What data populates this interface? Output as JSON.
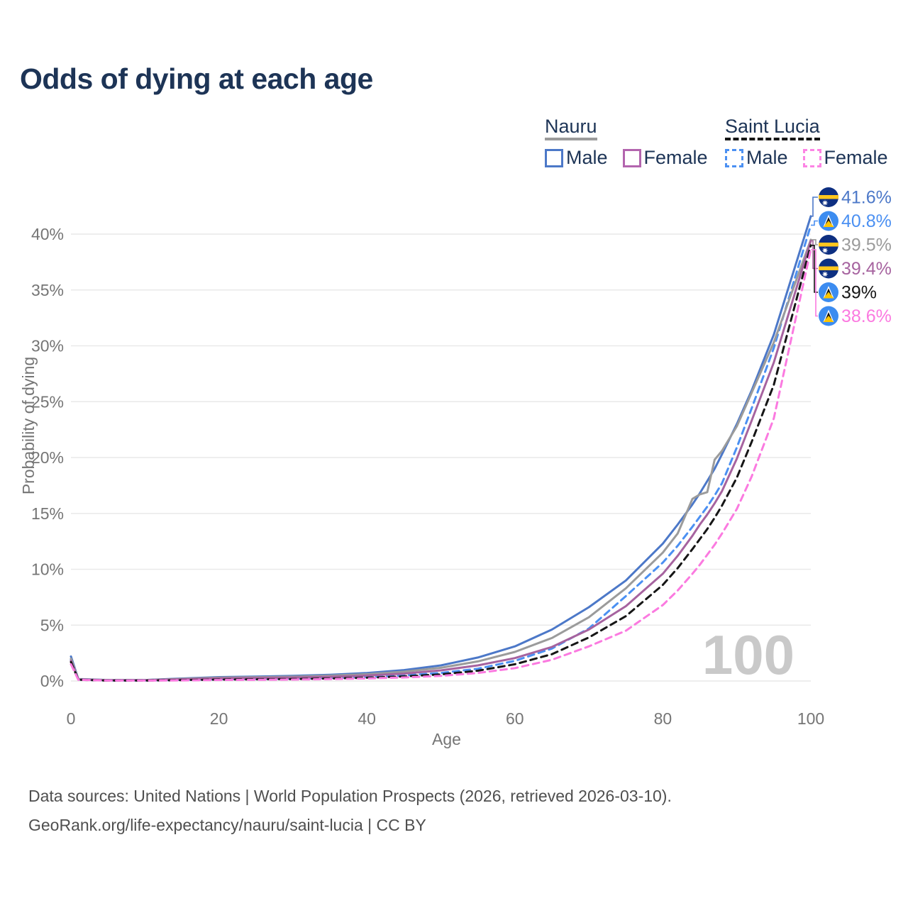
{
  "title": "Odds of dying at each age",
  "watermark": "100",
  "legend": {
    "groups": [
      {
        "country": "Nauru",
        "line_style": "solid",
        "line_color": "#9b9b9b",
        "items": [
          {
            "label": "Male",
            "swatch_color": "#4c78c8",
            "swatch_style": "solid"
          },
          {
            "label": "Female",
            "swatch_color": "#b365ae",
            "swatch_style": "solid"
          }
        ]
      },
      {
        "country": "Saint Lucia",
        "line_style": "dashed",
        "line_color": "#161616",
        "items": [
          {
            "label": "Male",
            "swatch_color": "#4b90f2",
            "swatch_style": "dashed"
          },
          {
            "label": "Female",
            "swatch_color": "#fc84e4",
            "swatch_style": "dashed"
          }
        ]
      }
    ]
  },
  "footer": {
    "line1": "Data sources: United Nations | World Population Prospects (2026, retrieved 2026-03-10).",
    "line2": "GeoRank.org/life-expectancy/nauru/saint-lucia | CC BY"
  },
  "chart_data": {
    "type": "line",
    "title": "Odds of dying at each age",
    "xlabel": "Age",
    "ylabel": "Probability of dying",
    "xlim": [
      0,
      100
    ],
    "ylim": [
      0,
      43
    ],
    "grid": true,
    "legend_position": "top-right",
    "x_ticks": {
      "values": [
        0,
        20,
        40,
        60,
        80,
        100
      ],
      "labels": [
        "0",
        "20",
        "40",
        "60",
        "80",
        "100"
      ]
    },
    "y_ticks": {
      "values": [
        0,
        5,
        10,
        15,
        20,
        25,
        30,
        35,
        40
      ],
      "labels": [
        "0%",
        "5%",
        "10%",
        "15%",
        "20%",
        "25%",
        "30%",
        "35%",
        "40%"
      ]
    },
    "x": [
      0,
      1,
      5,
      10,
      15,
      20,
      25,
      30,
      35,
      40,
      45,
      50,
      55,
      60,
      65,
      70,
      75,
      80,
      82,
      84,
      85,
      86,
      87,
      88,
      90,
      92,
      95,
      100
    ],
    "series": [
      {
        "name": "Nauru Male",
        "country": "Nauru",
        "sex": "Male",
        "color": "#4c78c8",
        "dash": "solid",
        "flag": "nauru",
        "end_label": "41.6%",
        "values": [
          2.2,
          0.18,
          0.09,
          0.09,
          0.22,
          0.35,
          0.4,
          0.46,
          0.56,
          0.72,
          0.98,
          1.4,
          2.1,
          3.1,
          4.6,
          6.6,
          9.0,
          12.3,
          14.0,
          15.8,
          16.8,
          17.9,
          19.0,
          20.3,
          23.0,
          26.0,
          31.0,
          41.6
        ]
      },
      {
        "name": "Saint Lucia Male",
        "country": "Saint Lucia",
        "sex": "Male",
        "color": "#4b90f2",
        "dash": "dashed",
        "flag": "saint-lucia",
        "end_label": "40.8%",
        "values": [
          1.9,
          0.13,
          0.05,
          0.05,
          0.1,
          0.16,
          0.18,
          0.21,
          0.27,
          0.36,
          0.5,
          0.72,
          1.1,
          1.8,
          2.9,
          4.7,
          7.6,
          10.6,
          12.1,
          13.8,
          14.7,
          15.6,
          16.6,
          17.7,
          20.9,
          24.4,
          29.8,
          40.8
        ]
      },
      {
        "name": "Nauru Total",
        "country": "Nauru",
        "sex": "Both",
        "color": "#9b9b9b",
        "dash": "solid",
        "flag": "nauru",
        "end_label": "39.5%",
        "values": [
          2.0,
          0.16,
          0.08,
          0.08,
          0.19,
          0.3,
          0.34,
          0.39,
          0.48,
          0.61,
          0.83,
          1.18,
          1.75,
          2.6,
          3.85,
          5.7,
          8.3,
          11.5,
          13.2,
          16.3,
          16.7,
          16.9,
          19.8,
          20.6,
          22.8,
          25.8,
          30.3,
          39.5
        ]
      },
      {
        "name": "Nauru Female",
        "country": "Nauru",
        "sex": "Female",
        "color": "#a6639f",
        "dash": "solid",
        "flag": "nauru",
        "end_label": "39.4%",
        "values": [
          1.8,
          0.14,
          0.07,
          0.07,
          0.15,
          0.24,
          0.27,
          0.31,
          0.38,
          0.49,
          0.66,
          0.95,
          1.4,
          2.05,
          3.05,
          4.6,
          6.7,
          9.6,
          11.2,
          13.0,
          14.0,
          14.9,
          15.9,
          17.0,
          19.9,
          23.3,
          28.5,
          39.4
        ]
      },
      {
        "name": "Saint Lucia Total",
        "country": "Saint Lucia",
        "sex": "Both",
        "color": "#161616",
        "dash": "dashed",
        "flag": "saint-lucia",
        "end_label": "39%",
        "values": [
          1.7,
          0.11,
          0.04,
          0.04,
          0.08,
          0.13,
          0.15,
          0.17,
          0.22,
          0.29,
          0.41,
          0.59,
          0.92,
          1.5,
          2.4,
          3.9,
          5.8,
          8.6,
          10.1,
          11.8,
          12.7,
          13.6,
          14.6,
          15.7,
          18.2,
          21.4,
          26.5,
          39.0
        ]
      },
      {
        "name": "Saint Lucia Female",
        "country": "Saint Lucia",
        "sex": "Female",
        "color": "#fb7ae0",
        "dash": "dashed",
        "flag": "saint-lucia",
        "end_label": "38.6%",
        "values": [
          1.5,
          0.1,
          0.04,
          0.04,
          0.06,
          0.09,
          0.11,
          0.13,
          0.17,
          0.23,
          0.32,
          0.46,
          0.72,
          1.15,
          1.9,
          3.1,
          4.5,
          6.8,
          8.1,
          9.6,
          10.4,
          11.3,
          12.2,
          13.2,
          15.4,
          18.3,
          23.5,
          38.6
        ]
      }
    ]
  }
}
